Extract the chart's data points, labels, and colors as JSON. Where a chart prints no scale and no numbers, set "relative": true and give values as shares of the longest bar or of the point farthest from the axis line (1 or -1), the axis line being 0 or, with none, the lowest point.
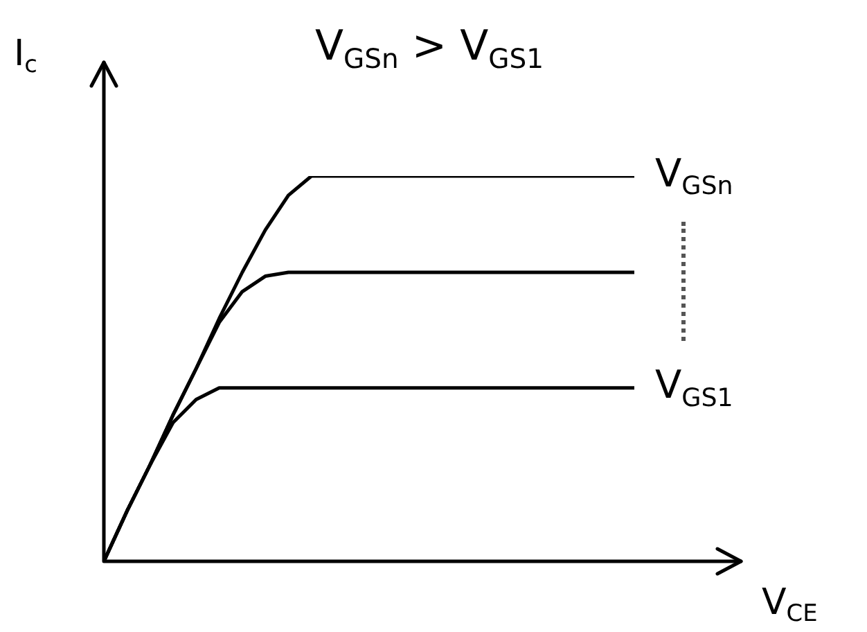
{
  "chart_data": {
    "type": "line",
    "title": "V$_{GSn}$ > V$_{GS1}$",
    "xlabel": "V$_{CE}$",
    "ylabel": "I$_{c}$",
    "relative": true,
    "legend": false,
    "marker": "none",
    "line_style": "solid",
    "categories": [
      null,
      null,
      null,
      null,
      null,
      null,
      null,
      null,
      null,
      null,
      null,
      null,
      null,
      null,
      null,
      null,
      null,
      null,
      null,
      null,
      null,
      null,
      null,
      null
    ],
    "series": [
      {
        "name": "V$_{GSn}$",
        "color": "#000000",
        "values": [
          0,
          0.13,
          0.25,
          0.38,
          0.5,
          0.63,
          0.75,
          0.86,
          0.95,
          1,
          1,
          1,
          1,
          1,
          1,
          1,
          1,
          1,
          1,
          1,
          1,
          1,
          1,
          1
        ]
      },
      {
        "color": "#000000",
        "values": [
          0,
          0.13,
          0.25,
          0.38,
          0.5,
          0.62,
          0.7,
          0.74,
          0.75,
          0.75,
          0.75,
          0.75,
          0.75,
          0.75,
          0.75,
          0.75,
          0.75,
          0.75,
          0.75,
          0.75,
          0.75,
          0.75,
          0.75,
          0.75
        ]
      },
      {
        "name": "V$_{GS1}$",
        "color": "#000000",
        "values": [
          0,
          0.13,
          0.25,
          0.36,
          0.42,
          0.45,
          0.45,
          0.45,
          0.45,
          0.45,
          0.45,
          0.45,
          0.45,
          0.45,
          0.45,
          0.45,
          0.45,
          0.45,
          0.45,
          0.45,
          0.45,
          0.45,
          0.45,
          0.45
        ]
      }
    ]
  }
}
